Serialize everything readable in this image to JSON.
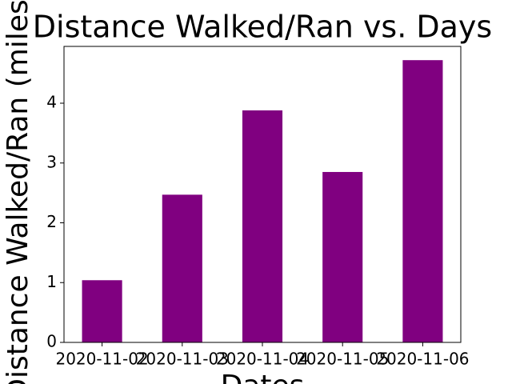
{
  "chart_data": {
    "type": "bar",
    "title": "Distance Walked/Ran vs. Days",
    "x_label": "Dates",
    "y_label": "Distance Walked/Ran (miles)",
    "categories": [
      "2020-11-02",
      "2020-11-03",
      "2020-11-04",
      "2020-11-05",
      "2020-11-06"
    ],
    "values": [
      1.04,
      2.47,
      3.88,
      2.85,
      4.72
    ],
    "color": "#800080",
    "ylim": [
      0,
      4.95
    ],
    "yticks": [
      0,
      1,
      2,
      3,
      4
    ]
  }
}
